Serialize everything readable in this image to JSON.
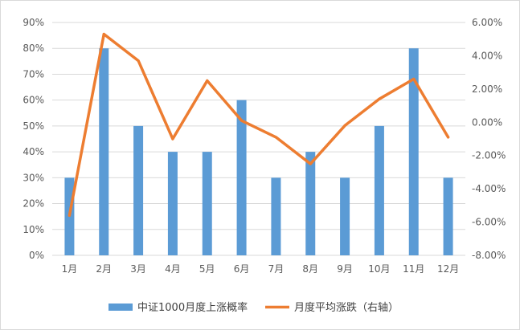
{
  "chart_data": {
    "type": "bar",
    "categories": [
      "1月",
      "2月",
      "3月",
      "4月",
      "5月",
      "6月",
      "7月",
      "8月",
      "9月",
      "10月",
      "11月",
      "12月"
    ],
    "series": [
      {
        "name": "中证1000月度上涨概率",
        "type": "bar",
        "axis": "left",
        "values": [
          30,
          80,
          50,
          40,
          40,
          60,
          30,
          40,
          30,
          50,
          80,
          30
        ]
      },
      {
        "name": "月度平均涨跌（右轴）",
        "type": "line",
        "axis": "right",
        "values": [
          -5.6,
          5.3,
          3.7,
          -1.0,
          2.5,
          0.1,
          -0.9,
          -2.5,
          -0.2,
          1.4,
          2.6,
          -0.9
        ]
      }
    ],
    "y_left": {
      "range": [
        0,
        90
      ],
      "ticks": [
        0,
        10,
        20,
        30,
        40,
        50,
        60,
        70,
        80,
        90
      ],
      "tick_labels": [
        "0%",
        "10%",
        "20%",
        "30%",
        "40%",
        "50%",
        "60%",
        "70%",
        "80%",
        "90%"
      ]
    },
    "y_right": {
      "range": [
        -8,
        6
      ],
      "ticks": [
        -8,
        -6,
        -4,
        -2,
        0,
        2,
        4,
        6
      ],
      "tick_labels": [
        "-8.00%",
        "-6.00%",
        "-4.00%",
        "-2.00%",
        "0.00%",
        "2.00%",
        "4.00%",
        "6.00%"
      ]
    },
    "grid": true,
    "legend": "bottom",
    "colors": {
      "bar": "#5b9bd5",
      "line": "#ed7d31",
      "grid": "#d9d9d9",
      "text": "#595959"
    }
  }
}
